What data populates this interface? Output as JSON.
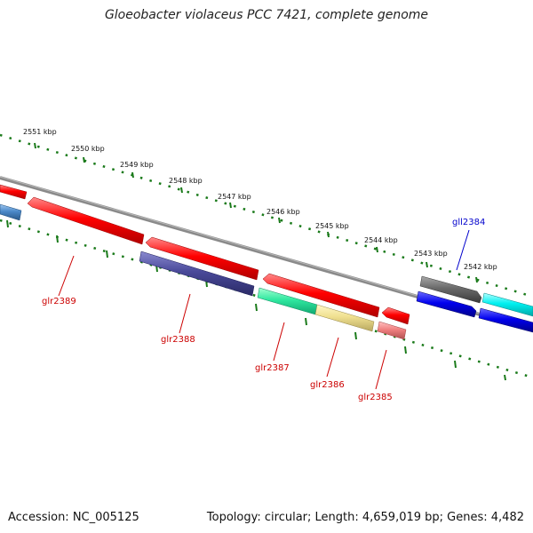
{
  "title": "Gloeobacter violaceus PCC 7421, complete genome",
  "footer": {
    "accession": "Accession: NC_005125",
    "info": "Topology: circular; Length: 4,659,019 bp; Genes: 4,482"
  },
  "colors": {
    "backbone": "#8a8a8a",
    "ticks": "#1a7a1a",
    "label_reverse": "#cc0000",
    "label_forward": "#0000cc"
  },
  "kbp_labels": [
    "2551 kbp",
    "2550 kbp",
    "2549 kbp",
    "2548 kbp",
    "2547 kbp",
    "2546 kbp",
    "2545 kbp",
    "2544 kbp",
    "2543 kbp",
    "2542 kbp"
  ],
  "genes": [
    {
      "name": "glr2389",
      "strand": "reverse",
      "color": "#ff0000"
    },
    {
      "name": "glr2388",
      "strand": "reverse",
      "color": "#ff0000"
    },
    {
      "name": "glr2387",
      "strand": "reverse",
      "color": "#ff0000"
    },
    {
      "name": "glr2386",
      "strand": "reverse",
      "color": "#ff0000"
    },
    {
      "name": "glr2385",
      "strand": "reverse",
      "color": "#ff0000"
    },
    {
      "name": "gll2384",
      "strand": "forward",
      "color": "#666666"
    }
  ]
}
